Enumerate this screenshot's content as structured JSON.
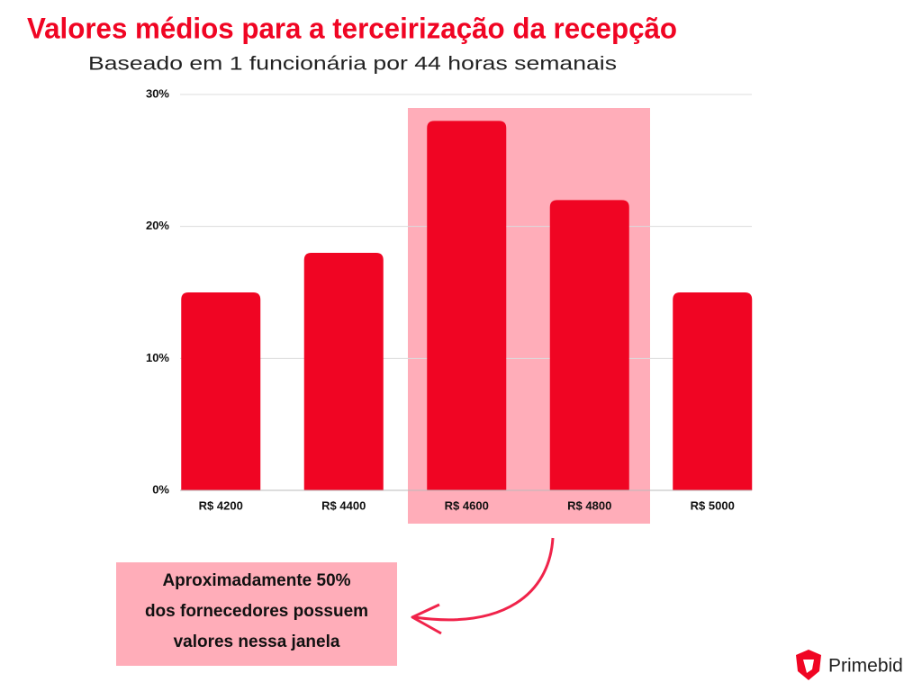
{
  "chart_data": {
    "type": "bar",
    "title": "Valores médios para a terceirização da recepção",
    "subtitle": "Baseado em 1 funcionária por 44 horas semanais",
    "categories": [
      "R$ 4200",
      "R$ 4400",
      "R$ 4600",
      "R$ 4800",
      "R$ 5000"
    ],
    "values": [
      15,
      18,
      28,
      22,
      15
    ],
    "color": "#f00523",
    "ylim": [
      0,
      30
    ],
    "yticks": [
      {
        "value": 0,
        "label": "0%"
      },
      {
        "value": 10,
        "label": "10%"
      },
      {
        "value": 20,
        "label": "20%"
      },
      {
        "value": 30,
        "label": "30%"
      }
    ],
    "grid": true,
    "annotation": [
      "Aproximadamente 50%",
      "dos fornecedores possuem",
      "valores nessa janela"
    ]
  },
  "logo": "Primebid"
}
